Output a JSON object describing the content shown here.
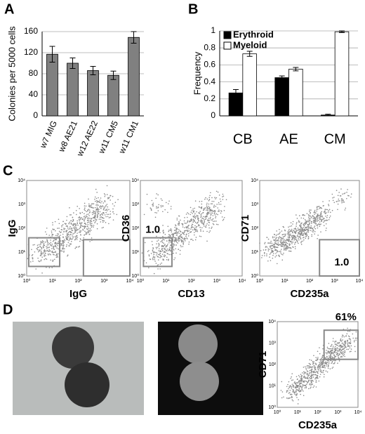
{
  "panel_labels": [
    "A",
    "B",
    "C",
    "D"
  ],
  "chart_data": [
    {
      "type": "bar",
      "y_label": "Colonies per 5000 cells",
      "categories": [
        "w7 MIG",
        "w8 AE21",
        "w12 AE22",
        "w11 CM5",
        "w11 CM1"
      ],
      "values": [
        117,
        100,
        86,
        77,
        149
      ],
      "errors": [
        15,
        10,
        8,
        8,
        11
      ],
      "color": "#808080",
      "ylim": [
        0,
        160
      ],
      "yticks": [
        0,
        40,
        80,
        120,
        160
      ],
      "grid": true
    },
    {
      "type": "bar",
      "y_label": "Frequency",
      "categories": [
        "CB",
        "AE",
        "CM"
      ],
      "series": [
        {
          "name": "Erythroid",
          "color": "#000000",
          "values": [
            0.27,
            0.45,
            0.01
          ],
          "errors": [
            0.04,
            0.02,
            0.01
          ]
        },
        {
          "name": "Myeloid",
          "color": "#ffffff",
          "values": [
            0.73,
            0.55,
            0.99
          ],
          "errors": [
            0.03,
            0.02,
            0.01
          ]
        }
      ],
      "ylim": [
        0,
        1
      ],
      "yticks": [
        0,
        0.2,
        0.4,
        0.6,
        0.8,
        1
      ],
      "grid": true,
      "legend": "upper left"
    }
  ],
  "flow_tick_labels": [
    "10⁰",
    "10¹",
    "10²",
    "10³",
    "10⁴"
  ],
  "flow_plots": [
    {
      "x_label": "IgG",
      "y_label": "IgG"
    },
    {
      "x_label": "CD13",
      "y_label": "CD36",
      "gate_label": "1.0"
    },
    {
      "x_label": "CD235a",
      "y_label": "CD71",
      "gate_label": "1.0"
    },
    {
      "x_label": "CD235a",
      "y_label": "CD71",
      "gate_label": "61%"
    }
  ]
}
